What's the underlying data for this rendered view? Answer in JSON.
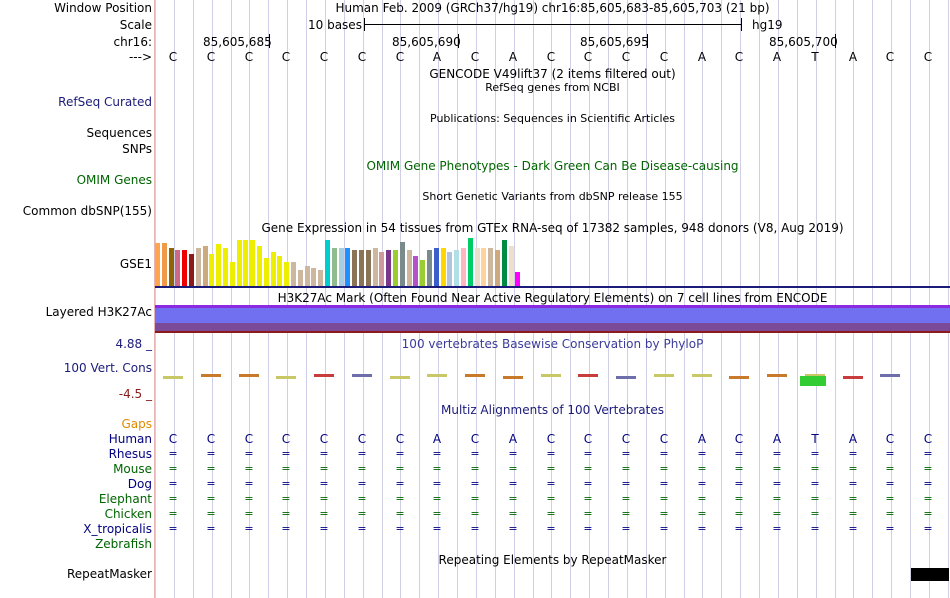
{
  "header": {
    "window_position_label": "Window Position",
    "window_position_value": "Human Feb. 2009 (GRCh37/hg19)   chr16:85,605,683-85,605,703 (21 bp)",
    "scale_label": "Scale",
    "scale_text": "10 bases",
    "scale_assembly": "hg19",
    "chrom_label": "chr16:",
    "positions": [
      "85,605,685",
      "85,605,690",
      "85,605,695",
      "85,605,700"
    ],
    "strand_label": "--->"
  },
  "bases": [
    "C",
    "C",
    "C",
    "C",
    "C",
    "C",
    "C",
    "A",
    "C",
    "A",
    "C",
    "C",
    "C",
    "C",
    "A",
    "C",
    "A",
    "T",
    "A",
    "C",
    "C"
  ],
  "tracks": {
    "gencode_title": "GENCODE V49lift37 (2 items filtered out)",
    "refseq_subtitle": "RefSeq genes from NCBI",
    "refseq_label": "RefSeq Curated",
    "publications_title": "Publications: Sequences in Scientific Articles",
    "sequences_label": "Sequences",
    "snps_label": "SNPs",
    "omim_title": "OMIM Gene Phenotypes - Dark Green Can Be Disease-causing",
    "omim_label": "OMIM Genes",
    "dbsnp_title": "Short Genetic Variants from dbSNP release 155",
    "dbsnp_label": "Common dbSNP(155)",
    "gtex_title": "Gene Expression in 54 tissues from GTEx RNA-seq of 17382 samples, 948 donors (V8, Aug 2019)",
    "gtex_label": "GSE1",
    "h3k27ac_title": "H3K27Ac Mark (Often Found Near Active Regulatory Elements) on 7 cell lines from ENCODE",
    "h3k27ac_label": "Layered H3K27Ac",
    "phylop_max": "4.88 _",
    "phylop_title": "100 vertebrates Basewise Conservation by PhyloP",
    "phylop_label": "100 Vert. Cons",
    "phylop_min": "-4.5 _",
    "multiz_title": "Multiz Alignments of 100 Vertebrates",
    "gaps_label": "Gaps",
    "repeat_title": "Repeating Elements by RepeatMasker",
    "repeat_label": "RepeatMasker"
  },
  "species": [
    "Human",
    "Rhesus",
    "Mouse",
    "Dog",
    "Elephant",
    "Chicken",
    "X_tropicalis",
    "Zebrafish"
  ],
  "species_colors": [
    "#000080",
    "#000080",
    "#006400",
    "#000080",
    "#006400",
    "#006400",
    "#000080",
    "#006400"
  ],
  "align_symbol": "=",
  "gtex_values": [
    43,
    43,
    38,
    36,
    36,
    32,
    38,
    40,
    32,
    42,
    38,
    24,
    46,
    46,
    46,
    40,
    28,
    34,
    30,
    24,
    24,
    16,
    20,
    18,
    16,
    46,
    38,
    38,
    38,
    36,
    36,
    36,
    38,
    34,
    36,
    36,
    44,
    36,
    30,
    26,
    36,
    38,
    38,
    34,
    36,
    38,
    48,
    38,
    38,
    38,
    36,
    46,
    40,
    14
  ],
  "gtex_colors": [
    "#ffa54f",
    "#ee9a49",
    "#8b6508",
    "#cd6889",
    "#ee0000",
    "#8b1a1a",
    "#cdb79e",
    "#cdaa7d",
    "#eeee00",
    "#eeee00",
    "#eeee00",
    "#eeee00",
    "#eeee00",
    "#eeee00",
    "#eeee00",
    "#eeee00",
    "#eeee00",
    "#eeee00",
    "#eeee00",
    "#eeee00",
    "#cdb79e",
    "#cdb79e",
    "#cdb79e",
    "#cdb79e",
    "#cdb79e",
    "#00cdcd",
    "#8fbc8f",
    "#a6cee3",
    "#1e90ff",
    "#8b7355",
    "#8b7355",
    "#8b7355",
    "#cdb79e",
    "#cd9b9b",
    "#7a378b",
    "#9acd32",
    "#7a8b8b",
    "#cdb79e",
    "#b452cd",
    "#9acd32",
    "#7a8b8b",
    "#3a5fcd",
    "#ffd700",
    "#b0c4de",
    "#b0e0e6",
    "#ffb6c1",
    "#00cd66",
    "#eedfcc",
    "#ffd39b",
    "#cdb79e",
    "#cdaa7d",
    "#008b45",
    "#eedfcc",
    "#ff00ff"
  ]
}
